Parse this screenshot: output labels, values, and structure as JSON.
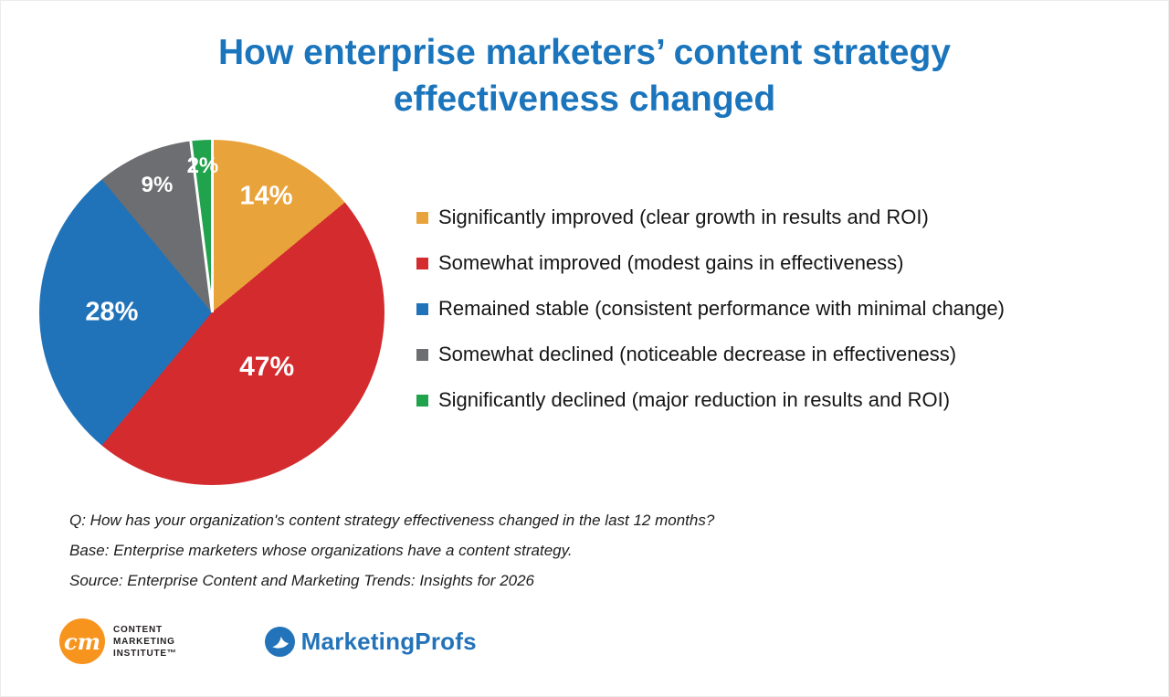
{
  "chart_data": {
    "type": "pie",
    "title": "How enterprise marketers’ content strategy effectiveness changed",
    "direction": "clockwise",
    "start_angle_deg": 0,
    "legend_position": "right",
    "labels": [
      "14%",
      "47%",
      "28%",
      "9%",
      "2%"
    ],
    "series": [
      {
        "label": "Significantly improved (clear growth in results and ROI)",
        "value": 14,
        "color": "#E8A33B"
      },
      {
        "label": "Somewhat improved (modest gains in effectiveness)",
        "value": 47,
        "color": "#D42B2E"
      },
      {
        "label": "Remained stable (consistent performance with minimal change)",
        "value": 28,
        "color": "#2173B9"
      },
      {
        "label": "Somewhat declined (noticeable decrease in effectiveness)",
        "value": 9,
        "color": "#6D6E71"
      },
      {
        "label": "Significantly declined (major reduction in results and ROI)",
        "value": 2,
        "color": "#21A24C"
      }
    ]
  },
  "footnotes": [
    "Q: How has your organization's content strategy effectiveness changed in the last 12 months?",
    "Base: Enterprise marketers whose organizations have a content strategy.",
    "Source: Enterprise Content and Marketing Trends: Insights for 2026"
  ],
  "footer": {
    "cmi": {
      "monogram": "cm",
      "line1": "CONTENT",
      "line2": "MARKETING",
      "line3": "INSTITUTE™"
    },
    "marketingprofs": "MarketingProfs"
  }
}
